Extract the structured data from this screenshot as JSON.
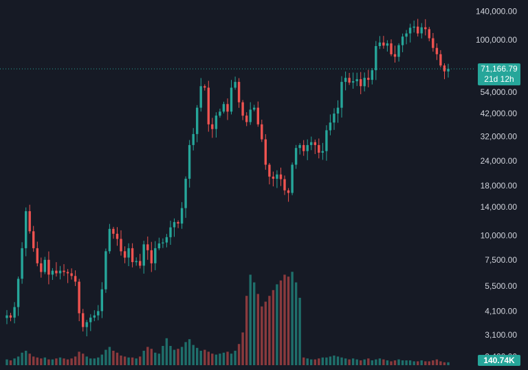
{
  "chart_data": {
    "type": "candlestick",
    "yscale": "log",
    "ylim": [
      2100,
      150000
    ],
    "y_ticks": [
      {
        "value": 140000,
        "label": "140,000.00"
      },
      {
        "value": 100000,
        "label": "100,000.00"
      },
      {
        "value": 54000,
        "label": "54,000.00"
      },
      {
        "value": 42000,
        "label": "42,000.00"
      },
      {
        "value": 32000,
        "label": "32,000.00"
      },
      {
        "value": 24000,
        "label": "24,000.00"
      },
      {
        "value": 18000,
        "label": "18,000.00"
      },
      {
        "value": 14000,
        "label": "14,000.00"
      },
      {
        "value": 10000,
        "label": "10,000.00"
      },
      {
        "value": 7500,
        "label": "7,500.00"
      },
      {
        "value": 5500,
        "label": "5,500.00"
      },
      {
        "value": 4100,
        "label": "4,100.00"
      },
      {
        "value": 3100,
        "label": "3,100.00"
      },
      {
        "value": 2400,
        "label": "2,400.00"
      }
    ],
    "last_price": 71166.79,
    "last_price_label": "71,166.79",
    "countdown_label": "21d 12h",
    "volume_label": "140.74K",
    "colors": {
      "background": "#161a25",
      "up": "#26a69a",
      "down": "#ef5350",
      "up_volume": "#1f6f6b",
      "down_volume": "#8a3a3d",
      "price_line": "#26a69a",
      "axis_text": "#d1d4dc"
    },
    "close_path": [
      3900,
      3800,
      4300,
      6000,
      8600,
      13300,
      10500,
      8600,
      7200,
      6500,
      7500,
      6300,
      6600,
      6400,
      6600,
      6500,
      6400,
      6200,
      5800,
      4000,
      3400,
      3600,
      3800,
      3900,
      4100,
      5300,
      8300,
      10800,
      10200,
      9600,
      8300,
      7700,
      8600,
      7300,
      7400,
      7000,
      9000,
      8400,
      7200,
      8600,
      9100,
      9200,
      9800,
      11000,
      11700,
      11500,
      13800,
      19500,
      29000,
      33000,
      45000,
      58000,
      57000,
      37000,
      35000,
      41000,
      43000,
      47000,
      43000,
      57000,
      61000,
      48000,
      41000,
      38000,
      44000,
      45000,
      37000,
      31000,
      23000,
      20000,
      19500,
      20500,
      19400,
      17000,
      16500,
      23000,
      28000,
      29000,
      27000,
      29000,
      30000,
      29000,
      26500,
      27000,
      34500,
      37800,
      42000,
      45000,
      61000,
      64000,
      60500,
      61500,
      63000,
      58000,
      64000,
      62500,
      70000,
      93000,
      97000,
      93500,
      96000,
      84500,
      82000,
      94000,
      104000,
      108000,
      115500,
      117000,
      108000,
      116000,
      113500,
      102000,
      91000,
      84500,
      74000,
      69000,
      71166.79
    ],
    "volume_path": [
      0.06,
      0.05,
      0.07,
      0.09,
      0.13,
      0.15,
      0.12,
      0.09,
      0.08,
      0.07,
      0.08,
      0.06,
      0.06,
      0.07,
      0.08,
      0.07,
      0.06,
      0.07,
      0.09,
      0.14,
      0.12,
      0.09,
      0.07,
      0.07,
      0.08,
      0.11,
      0.16,
      0.19,
      0.15,
      0.13,
      0.1,
      0.09,
      0.08,
      0.08,
      0.07,
      0.09,
      0.15,
      0.19,
      0.17,
      0.13,
      0.12,
      0.2,
      0.28,
      0.2,
      0.16,
      0.17,
      0.19,
      0.24,
      0.27,
      0.21,
      0.18,
      0.15,
      0.16,
      0.14,
      0.12,
      0.11,
      0.12,
      0.13,
      0.14,
      0.12,
      0.15,
      0.22,
      0.34,
      0.72,
      0.94,
      0.86,
      0.74,
      0.61,
      0.66,
      0.72,
      0.78,
      0.84,
      0.88,
      0.94,
      0.92,
      0.97,
      0.86,
      0.7,
      0.08,
      0.07,
      0.06,
      0.06,
      0.07,
      0.08,
      0.08,
      0.09,
      0.1,
      0.09,
      0.08,
      0.07,
      0.06,
      0.07,
      0.06,
      0.05,
      0.06,
      0.07,
      0.05,
      0.06,
      0.07,
      0.06,
      0.05,
      0.04,
      0.05,
      0.06,
      0.05,
      0.05,
      0.05,
      0.04,
      0.04,
      0.05,
      0.04,
      0.04,
      0.05,
      0.06,
      0.04,
      0.03,
      0.03
    ]
  }
}
